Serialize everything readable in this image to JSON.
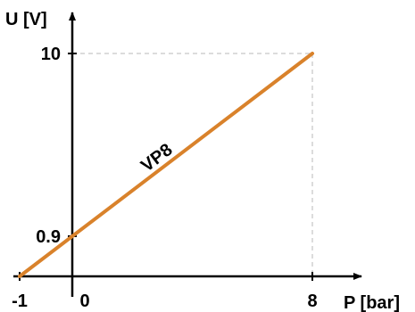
{
  "chart_data": {
    "type": "line",
    "xlabel": "P [bar]",
    "ylabel": "U [V]",
    "x_ticks": [
      {
        "value": -1,
        "label": "-1"
      },
      {
        "value": 0,
        "label": "0"
      },
      {
        "value": 8,
        "label": "8"
      }
    ],
    "y_ticks": [
      {
        "value": 0.9,
        "label": "0.9"
      },
      {
        "value": 10,
        "label": "10"
      }
    ],
    "series": [
      {
        "name": "VP8",
        "color": "#d9822b",
        "x": [
          -1,
          8
        ],
        "y": [
          0,
          10
        ]
      }
    ],
    "guide_color": "#d0d0d0",
    "grid": false,
    "legend": "none"
  }
}
